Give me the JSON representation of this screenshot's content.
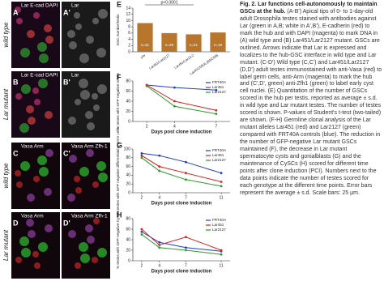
{
  "panels": [
    {
      "label": "A",
      "stain": "Lar E-cad DAPI"
    },
    {
      "label": "A'",
      "stain": "Lar"
    },
    {
      "label": "B",
      "stain": "Lar E-cad DAPI"
    },
    {
      "label": "B'",
      "stain": "Lar"
    },
    {
      "label": "C",
      "stain": "Vasa Arm"
    },
    {
      "label": "C'",
      "stain": "Vasa Arm Zfh-1"
    },
    {
      "label": "D",
      "stain": "Vasa Arm"
    },
    {
      "label": "D'",
      "stain": "Vasa Arm Zfh-1"
    }
  ],
  "row_labels": [
    "wild type",
    "Lar mutant",
    "wild type",
    "Lar mutant"
  ],
  "chart_data": [
    {
      "type": "bar",
      "panel": "E",
      "y_label": "GSC number/testis",
      "annotation": "p<0.0001",
      "categories": [
        "y/w",
        "Lar451/Lar2127",
        "Lar451/Lar13.2",
        "Lar451/Df(3L)BSC555"
      ],
      "values": [
        9.2,
        6,
        5.6,
        6.2
      ],
      "bar_labels": [
        "n=31",
        "n=29",
        "n=21",
        "n=18"
      ],
      "color": "#b8752c",
      "ylim": [
        0,
        14
      ],
      "yticks": [
        0,
        2,
        4,
        6,
        8,
        10,
        12,
        14
      ]
    },
    {
      "type": "line",
      "panel": "F",
      "y_label": "% testes with GFP negative GSCs",
      "x_label": "Days post clone induction",
      "x": [
        2,
        4,
        7
      ],
      "xlim": [
        1,
        8
      ],
      "xticks": [
        2,
        4,
        7
      ],
      "ylim": [
        0,
        80
      ],
      "yticks": [
        0,
        20,
        40,
        60,
        80
      ],
      "series": [
        {
          "name": "FRT40A",
          "color": "#1f3fbf",
          "values": [
            72,
            67,
            62
          ]
        },
        {
          "name": "Lar451",
          "color": "#d62020",
          "values": [
            72,
            40,
            22
          ]
        },
        {
          "name": "Lar2127",
          "color": "#2a9a2a",
          "values": [
            70,
            30,
            15
          ]
        }
      ]
    },
    {
      "type": "line",
      "panel": "G",
      "y_label": "% testes with GFP negative differentiating germ cells",
      "x_label": "Days post clone induction",
      "x": [
        2,
        4,
        7,
        11
      ],
      "xlim": [
        1,
        12
      ],
      "xticks": [
        2,
        4,
        7,
        11
      ],
      "ylim": [
        0,
        100
      ],
      "yticks": [
        0,
        20,
        40,
        60,
        80,
        100
      ],
      "series": [
        {
          "name": "FRT40A",
          "color": "#1f3fbf",
          "values": [
            90,
            85,
            70,
            45
          ]
        },
        {
          "name": "Lar451",
          "color": "#d62020",
          "values": [
            85,
            60,
            45,
            25
          ]
        },
        {
          "name": "Lar2127",
          "color": "#2a9a2a",
          "values": [
            80,
            50,
            30,
            15
          ]
        }
      ]
    },
    {
      "type": "line",
      "panel": "H",
      "y_label": "% testes with GFP negative CySCs",
      "x_label": "Days post clone induction",
      "x": [
        2,
        4,
        7,
        11
      ],
      "xlim": [
        1,
        12
      ],
      "xticks": [
        2,
        4,
        7,
        11
      ],
      "ylim": [
        0,
        80
      ],
      "yticks": [
        0,
        20,
        40,
        60,
        80
      ],
      "series": [
        {
          "name": "FRT40A",
          "color": "#1f3fbf",
          "values": [
            55,
            35,
            25,
            18
          ]
        },
        {
          "name": "Lar451",
          "color": "#d62020",
          "values": [
            60,
            30,
            45,
            20
          ]
        },
        {
          "name": "Lar2127",
          "color": "#2a9a2a",
          "values": [
            50,
            25,
            20,
            12
          ]
        }
      ]
    }
  ],
  "caption": {
    "title": "Fig. 2. Lar functions cell-autonomously to maintain GSCs at the hub.",
    "body": "(A-B') Apical tips of 0- to 1-day-old adult Drosophila testes stained with antibodies against Lar (green in A,B; white in A',B'), E-cadherin (red) to mark the hub and with DAPI (magenta) to mark DNA in (A) wild type and (B) Lar451/Lar2127 mutant. GSCs are outlined. Arrows indicate that Lar is expressed and localizes to the hub-GSC interface in wild type and Lar mutant. (C-D') Wild type (C,C') and Lar451/Lar2127 (D,D') adult testes immunostained with anti-Vasa (red) to label germ cells, anti-Arm (magenta) to mark the hub and (C',D', green) anti-Zfh1 (green) to label early cyst cell nuclei. (E) Quantitation of the number of GSCs scored in the hub per testis, reported as average ± s.d. in wild type and Lar mutant testes. The number of testes scored is shown. P-values of Student's t-test (two-tailed) are shown. (F-H) Germline clonal analysis of the Lar mutant alleles Lar451 (red) and Lar2127 (green) compared with FRT40A controls (blue). The reduction in the number of GFP-negative Lar mutant GSCs maintained (F), the decrease in Lar mutant spermatocyte cysts and gonialblasts (G) and the maintenance of CySCs (H) scored for different time points after clone induction (PCI). Numbers next to the data points indicate the number of testes scored for each genotype at the different time points. Error bars represent the average ± s.d. Scale bars: 25 μm."
  }
}
